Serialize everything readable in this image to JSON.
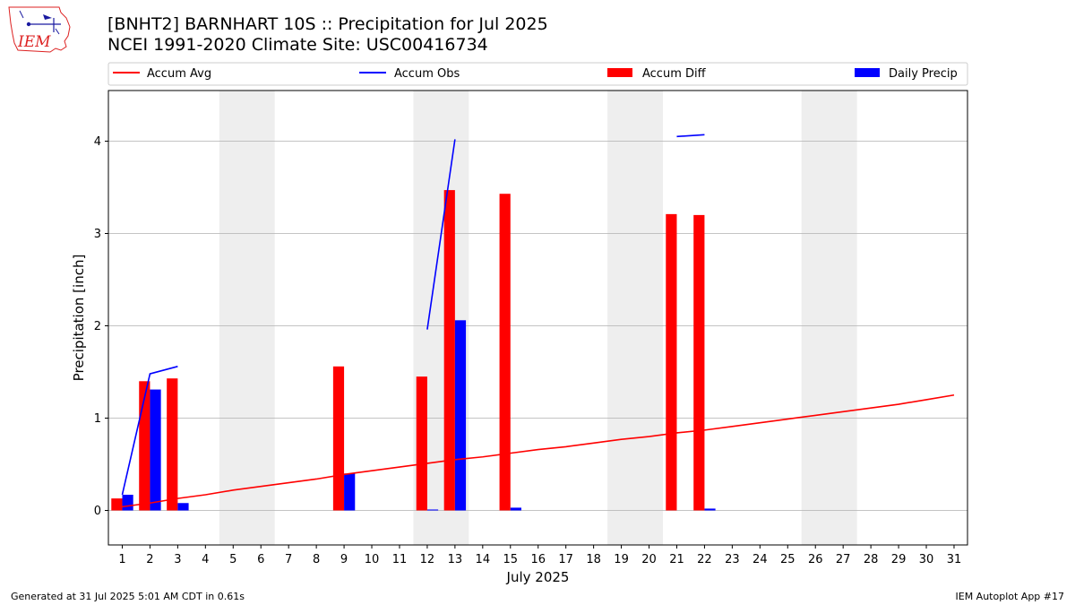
{
  "header": {
    "title_line1": "[BNHT2] BARNHART 10S :: Precipitation for Jul 2025",
    "title_line2": "NCEI 1991-2020 Climate Site: USC00416734"
  },
  "footer": {
    "generated": "Generated at 31 Jul 2025 5:01 AM CDT in 0.61s",
    "app": "IEM Autoplot App #17"
  },
  "logo": {
    "text": "IEM"
  },
  "colors": {
    "accum_avg": "#ff0000",
    "accum_obs": "#0000ff",
    "accum_diff": "#ff0000",
    "daily_precip": "#0000ff",
    "weekend_shade": "#eeeeee",
    "grid": "#b0b0b0"
  },
  "chart_data": {
    "type": "bar",
    "xlabel": "July 2025",
    "ylabel": "Precipitation [inch]",
    "ylim": [
      -0.37,
      4.57
    ],
    "yticks": [
      0,
      1,
      2,
      3,
      4
    ],
    "grid": "horizontal",
    "legend_placement": "top",
    "categories": [
      "1",
      "2",
      "3",
      "4",
      "5",
      "6",
      "7",
      "8",
      "9",
      "10",
      "11",
      "12",
      "13",
      "14",
      "15",
      "16",
      "17",
      "18",
      "19",
      "20",
      "21",
      "22",
      "23",
      "24",
      "25",
      "26",
      "27",
      "28",
      "29",
      "30",
      "31"
    ],
    "weekend_spans": [
      [
        5,
        6
      ],
      [
        12,
        13
      ],
      [
        19,
        20
      ],
      [
        26,
        27
      ]
    ],
    "series": [
      {
        "name": "Accum Avg",
        "kind": "line",
        "values": [
          0.04,
          0.08,
          0.13,
          0.17,
          0.22,
          0.26,
          0.3,
          0.34,
          0.39,
          0.43,
          0.47,
          0.51,
          0.55,
          0.58,
          0.62,
          0.66,
          0.69,
          0.73,
          0.77,
          0.8,
          0.84,
          0.87,
          0.91,
          0.95,
          0.99,
          1.03,
          1.07,
          1.11,
          1.15,
          1.2,
          1.25
        ]
      },
      {
        "name": "Accum Obs",
        "kind": "line",
        "values": [
          0.17,
          1.48,
          1.56,
          null,
          null,
          null,
          null,
          null,
          null,
          null,
          null,
          1.96,
          4.02,
          null,
          null,
          null,
          null,
          null,
          null,
          null,
          4.05,
          4.07,
          null,
          null,
          null,
          null,
          null,
          null,
          null,
          null,
          null
        ]
      },
      {
        "name": "Accum Diff",
        "kind": "bar",
        "values": [
          0.13,
          1.4,
          1.43,
          null,
          null,
          null,
          null,
          null,
          1.56,
          null,
          null,
          1.45,
          3.47,
          null,
          3.43,
          null,
          null,
          null,
          null,
          null,
          3.21,
          3.2,
          null,
          null,
          null,
          null,
          null,
          null,
          null,
          null,
          null
        ]
      },
      {
        "name": "Daily Precip",
        "kind": "bar",
        "values": [
          0.17,
          1.31,
          0.08,
          null,
          null,
          null,
          null,
          null,
          0.4,
          null,
          null,
          0.01,
          2.06,
          null,
          0.03,
          null,
          null,
          null,
          null,
          null,
          null,
          0.02,
          null,
          null,
          null,
          null,
          null,
          null,
          null,
          null,
          null
        ]
      }
    ]
  }
}
